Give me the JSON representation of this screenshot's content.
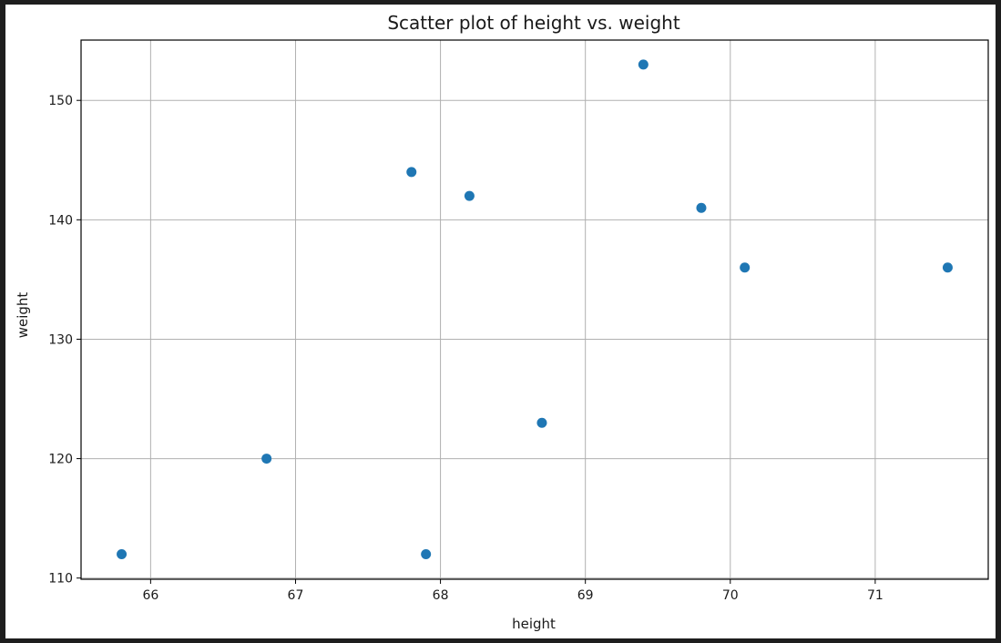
{
  "chart_data": {
    "type": "scatter",
    "title": "Scatter plot of height vs. weight",
    "xlabel": "height",
    "ylabel": "weight",
    "xlim": [
      65.52,
      71.78
    ],
    "ylim": [
      109.9,
      155.05
    ],
    "xticks": [
      66,
      67,
      68,
      69,
      70,
      71
    ],
    "yticks": [
      110,
      120,
      130,
      140,
      150
    ],
    "grid": true,
    "marker_color": "#1f77b4",
    "points": [
      {
        "x": 65.8,
        "y": 112
      },
      {
        "x": 66.8,
        "y": 120
      },
      {
        "x": 67.8,
        "y": 144
      },
      {
        "x": 67.9,
        "y": 112
      },
      {
        "x": 68.2,
        "y": 142
      },
      {
        "x": 68.7,
        "y": 123
      },
      {
        "x": 69.4,
        "y": 153
      },
      {
        "x": 69.8,
        "y": 141
      },
      {
        "x": 70.1,
        "y": 136
      },
      {
        "x": 71.5,
        "y": 136
      }
    ]
  }
}
